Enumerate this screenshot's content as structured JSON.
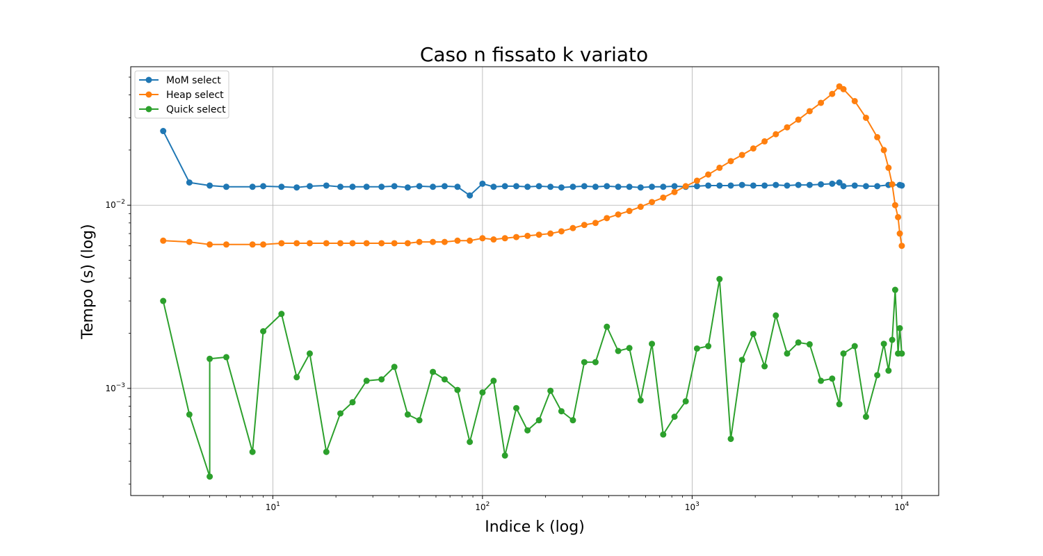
{
  "chart_data": {
    "type": "line",
    "title": "Caso n fissato k variato",
    "xlabel": "Indice k (log)",
    "ylabel": "Tempo (s) (log)",
    "xscale": "log",
    "yscale": "log",
    "xlim": [
      2.1,
      15000
    ],
    "ylim": [
      0.00026,
      0.057
    ],
    "grid": true,
    "legend_position": "top-left",
    "x_ticks": [
      {
        "value": 10,
        "base": "10",
        "exp": "1"
      },
      {
        "value": 100,
        "base": "10",
        "exp": "2"
      },
      {
        "value": 1000,
        "base": "10",
        "exp": "3"
      },
      {
        "value": 10000,
        "base": "10",
        "exp": "4"
      }
    ],
    "y_ticks": [
      {
        "value": 0.001,
        "base": "10",
        "exp": "−3"
      },
      {
        "value": 0.01,
        "base": "10",
        "exp": "−2"
      }
    ],
    "series": [
      {
        "name": "MoM select",
        "color": "#1f77b4",
        "x": [
          3,
          4,
          5,
          6,
          8,
          9,
          11,
          13,
          15,
          18,
          21,
          24,
          28,
          33,
          38,
          44,
          50,
          58,
          66,
          76,
          87,
          100,
          113,
          128,
          145,
          164,
          186,
          211,
          238,
          270,
          306,
          346,
          392,
          444,
          502,
          568,
          643,
          728,
          824,
          932,
          1055,
          1194,
          1351,
          1529,
          1730,
          1958,
          2216,
          2508,
          2838,
          3212,
          3635,
          4114,
          4656,
          5038,
          5270,
          5964,
          6750,
          7639,
          8645,
          9784,
          10000
        ],
        "values": [
          0.0254,
          0.0133,
          0.0128,
          0.0126,
          0.0126,
          0.0127,
          0.0126,
          0.0125,
          0.0127,
          0.0128,
          0.0126,
          0.0126,
          0.0126,
          0.0126,
          0.0127,
          0.0125,
          0.0127,
          0.0126,
          0.0127,
          0.0126,
          0.0113,
          0.0131,
          0.0126,
          0.0127,
          0.0127,
          0.0126,
          0.0127,
          0.0126,
          0.0125,
          0.0126,
          0.0127,
          0.0126,
          0.0127,
          0.0126,
          0.0126,
          0.0125,
          0.0126,
          0.0126,
          0.0127,
          0.0126,
          0.0127,
          0.0128,
          0.0128,
          0.0128,
          0.0129,
          0.0128,
          0.0128,
          0.0129,
          0.0128,
          0.0129,
          0.0129,
          0.013,
          0.0131,
          0.0133,
          0.0127,
          0.0128,
          0.0127,
          0.0127,
          0.0129,
          0.0129,
          0.0128
        ]
      },
      {
        "name": "Heap select",
        "color": "#ff7f0e",
        "x": [
          3,
          4,
          5,
          6,
          8,
          9,
          11,
          13,
          15,
          18,
          21,
          24,
          28,
          33,
          38,
          44,
          50,
          58,
          66,
          76,
          87,
          100,
          113,
          128,
          145,
          164,
          186,
          211,
          238,
          270,
          306,
          346,
          392,
          444,
          502,
          568,
          643,
          728,
          824,
          932,
          1055,
          1194,
          1351,
          1529,
          1730,
          1958,
          2216,
          2508,
          2838,
          3212,
          3635,
          4114,
          4656,
          5038,
          5270,
          5964,
          6750,
          7639,
          8214,
          8645,
          9000,
          9300,
          9600,
          9784,
          10000
        ],
        "values": [
          0.0064,
          0.0063,
          0.0061,
          0.0061,
          0.0061,
          0.0061,
          0.0062,
          0.0062,
          0.0062,
          0.0062,
          0.0062,
          0.0062,
          0.0062,
          0.0062,
          0.0062,
          0.0062,
          0.0063,
          0.0063,
          0.0063,
          0.0064,
          0.0064,
          0.0066,
          0.0065,
          0.0066,
          0.0067,
          0.0068,
          0.0069,
          0.007,
          0.0072,
          0.0075,
          0.0078,
          0.008,
          0.0085,
          0.0089,
          0.0093,
          0.0098,
          0.0104,
          0.011,
          0.0118,
          0.0127,
          0.0136,
          0.0147,
          0.016,
          0.0174,
          0.0188,
          0.0204,
          0.0223,
          0.0244,
          0.0266,
          0.0293,
          0.0326,
          0.0362,
          0.0405,
          0.0445,
          0.043,
          0.037,
          0.03,
          0.0235,
          0.02,
          0.016,
          0.013,
          0.01,
          0.0086,
          0.007,
          0.006
        ]
      },
      {
        "name": "Quick select",
        "color": "#2ca02c",
        "x": [
          3,
          4,
          5,
          5,
          6,
          8,
          9,
          11,
          13,
          15,
          18,
          21,
          24,
          28,
          33,
          38,
          44,
          50,
          58,
          66,
          76,
          87,
          100,
          113,
          128,
          145,
          164,
          186,
          211,
          238,
          270,
          306,
          346,
          392,
          444,
          502,
          568,
          643,
          728,
          824,
          932,
          1055,
          1194,
          1351,
          1529,
          1730,
          1958,
          2216,
          2508,
          2838,
          3212,
          3635,
          4114,
          4656,
          5038,
          5270,
          5964,
          6750,
          7639,
          8214,
          8645,
          9000,
          9300,
          9600,
          9784,
          10000
        ],
        "values": [
          0.003,
          0.00072,
          0.00033,
          0.00145,
          0.00148,
          0.00045,
          0.00205,
          0.00255,
          0.00115,
          0.00155,
          0.00045,
          0.00073,
          0.00084,
          0.0011,
          0.00112,
          0.00131,
          0.00072,
          0.00067,
          0.00123,
          0.00112,
          0.00098,
          0.00051,
          0.00095,
          0.0011,
          0.00043,
          0.00078,
          0.00059,
          0.00067,
          0.00097,
          0.00075,
          0.00067,
          0.00139,
          0.00139,
          0.00217,
          0.0016,
          0.00166,
          0.00086,
          0.00175,
          0.00056,
          0.0007,
          0.00085,
          0.00165,
          0.0017,
          0.00395,
          0.00053,
          0.00143,
          0.00198,
          0.00132,
          0.0025,
          0.00155,
          0.00178,
          0.00174,
          0.0011,
          0.00113,
          0.00082,
          0.00155,
          0.0017,
          0.0007,
          0.00118,
          0.00175,
          0.00125,
          0.00184,
          0.00345,
          0.00155,
          0.00213,
          0.00155
        ]
      }
    ]
  }
}
